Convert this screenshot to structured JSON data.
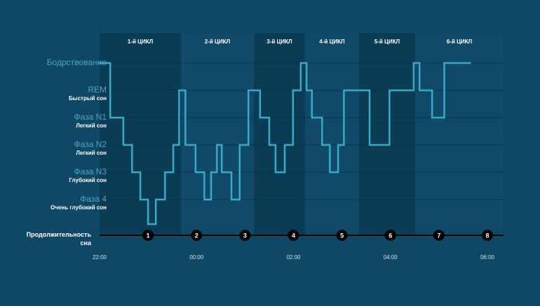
{
  "chart_data": {
    "type": "step",
    "stage_ticks": [
      {
        "value": 5,
        "label": "Бодрствование"
      },
      {
        "value": 4,
        "label": "REM",
        "sublabel": "Быстрый сон"
      },
      {
        "value": 3,
        "label": "Фаза N1",
        "sublabel": "Легкий сон"
      },
      {
        "value": 2,
        "label": "Фаза N2",
        "sublabel": "Легкий сон"
      },
      {
        "value": 1,
        "label": "Фаза N3",
        "sublabel": "Глубокий сон"
      },
      {
        "value": 0,
        "label": "Фаза 4",
        "sublabel": "Очень глубокий сон"
      }
    ],
    "ylim": [
      -1,
      5
    ],
    "xlim": [
      0,
      8
    ],
    "xticks": [
      {
        "value": 0,
        "label": "22:00"
      },
      {
        "value": 2,
        "label": "00:00"
      },
      {
        "value": 4,
        "label": "02:00"
      },
      {
        "value": 6,
        "label": "04:00"
      },
      {
        "value": 8,
        "label": "06:00"
      }
    ],
    "cycles": [
      {
        "name": "1-й ЦИКЛ",
        "start": 0,
        "end": 1.68
      },
      {
        "name": "2-й ЦИКЛ",
        "start": 1.68,
        "end": 3.18
      },
      {
        "name": "3-й ЦИКЛ",
        "start": 3.18,
        "end": 4.24
      },
      {
        "name": "4-й ЦИКЛ",
        "start": 4.24,
        "end": 5.35
      },
      {
        "name": "5-й ЦИКЛ",
        "start": 5.35,
        "end": 6.51
      },
      {
        "name": "6-й ЦИКЛ",
        "start": 6.51,
        "end": 8.34
      }
    ],
    "duration_label": "Продолжительность сна",
    "duration_marks": [
      1,
      2,
      3,
      4,
      5,
      6,
      7,
      8
    ],
    "series": [
      {
        "color": "#3aa8c6",
        "edges": [
          0,
          0.22,
          0.49,
          0.67,
          0.84,
          1.0,
          1.16,
          1.35,
          1.52,
          1.64,
          1.77,
          1.98,
          2.16,
          2.3,
          2.42,
          2.52,
          2.72,
          2.89,
          3.07,
          3.31,
          3.5,
          3.63,
          3.82,
          3.99,
          4.15,
          4.27,
          4.38,
          4.59,
          4.75,
          4.92,
          5.04,
          5.57,
          5.98,
          6.48,
          6.6,
          6.86,
          7.11,
          7.64
        ],
        "values": [
          5,
          3,
          2,
          1,
          0,
          -0.9,
          0,
          1,
          2,
          4,
          2,
          1,
          0,
          1,
          2,
          1,
          0,
          2,
          4,
          3,
          2,
          1,
          2,
          4,
          5,
          4,
          3,
          2,
          1,
          2,
          4,
          2,
          4,
          5,
          4,
          3,
          5
        ]
      }
    ]
  }
}
